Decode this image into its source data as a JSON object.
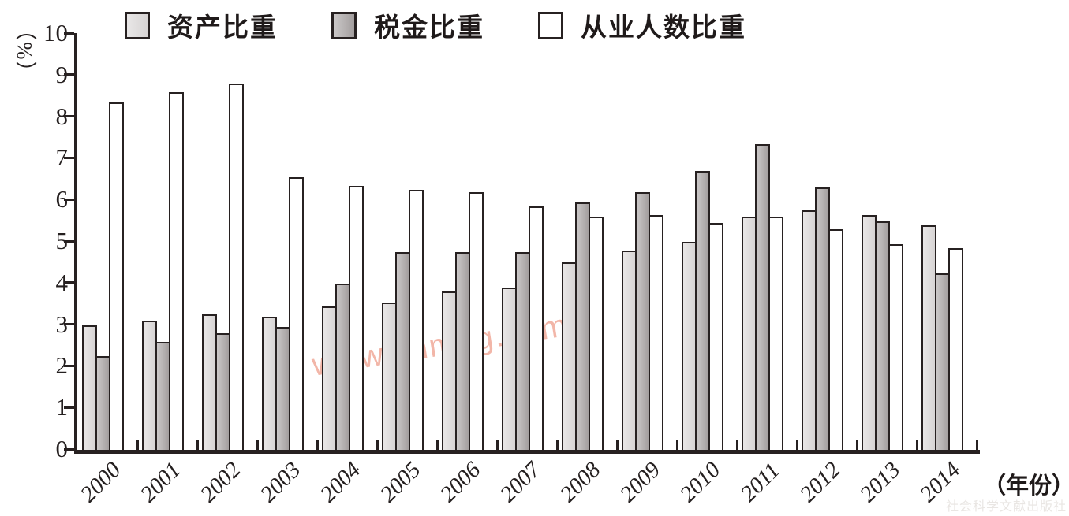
{
  "chart_data": {
    "type": "bar",
    "title": "",
    "xlabel": "（年份）",
    "ylabel": "（%）",
    "ylim": [
      0,
      10
    ],
    "y_tick_step": 1,
    "grid": false,
    "legend_position": "top",
    "categories": [
      "2000",
      "2001",
      "2002",
      "2003",
      "2004",
      "2005",
      "2006",
      "2007",
      "2008",
      "2009",
      "2010",
      "2011",
      "2012",
      "2013",
      "2014"
    ],
    "series": [
      {
        "key": "asset",
        "name": "资产比重",
        "values": [
          3.0,
          3.1,
          3.25,
          3.2,
          3.45,
          3.55,
          3.8,
          3.9,
          4.5,
          4.8,
          5.0,
          5.6,
          5.75,
          5.65,
          5.4
        ]
      },
      {
        "key": "tax",
        "name": "税金比重",
        "values": [
          2.25,
          2.6,
          2.8,
          2.95,
          4.0,
          4.75,
          4.75,
          4.75,
          5.95,
          6.2,
          6.7,
          7.35,
          6.3,
          5.5,
          4.25
        ]
      },
      {
        "key": "employment",
        "name": "从业人数比重",
        "values": [
          8.35,
          8.6,
          8.8,
          6.55,
          6.35,
          6.25,
          6.2,
          5.85,
          5.6,
          5.65,
          5.45,
          5.6,
          5.3,
          4.95,
          4.85
        ]
      }
    ]
  },
  "colors": {
    "axis": "#272121",
    "bar_border": "#272121",
    "asset_fill_start": "#e9e7e7",
    "asset_fill_end": "#d7d4d4",
    "tax_fill_start": "#cbc8c8",
    "tax_fill_end": "#a39e9e",
    "employment_fill": "#ffffff",
    "watermark_pink": "#ee9a87",
    "watermark_gray": "#e9e6e3"
  },
  "watermarks": {
    "center": "www.cnmhg.com",
    "bottom_right": "社会科学文献出版社"
  }
}
